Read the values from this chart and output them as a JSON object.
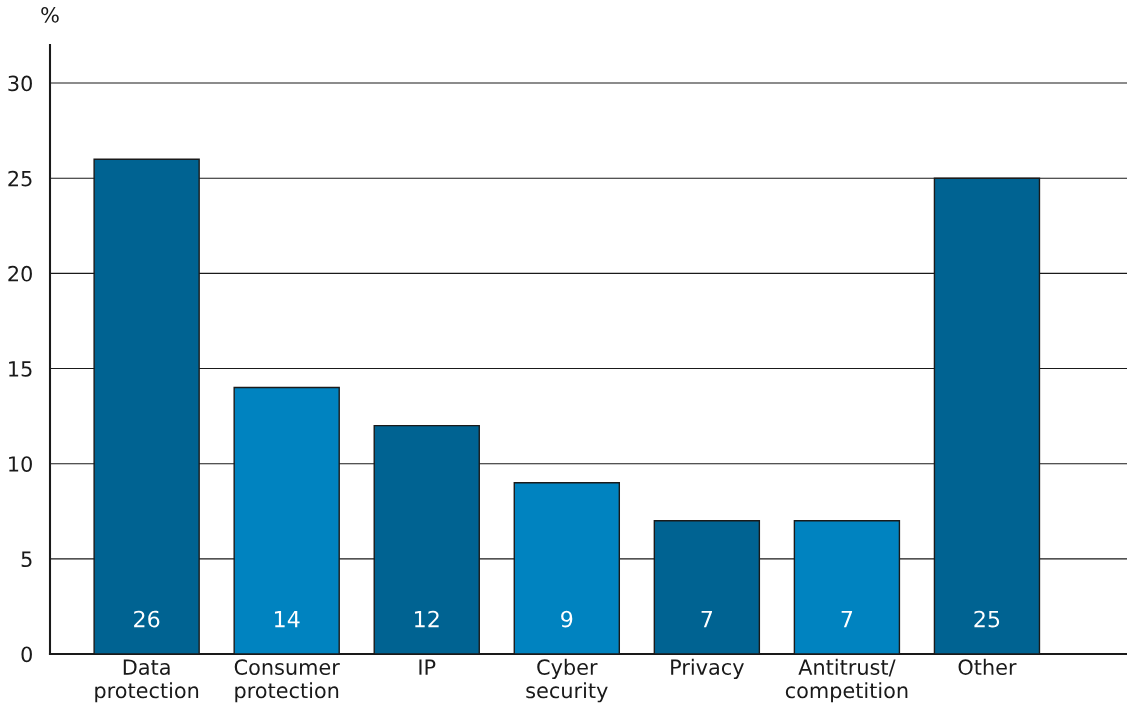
{
  "chart_data": {
    "type": "bar",
    "ylabel": "%",
    "categories": [
      "Data\nprotection",
      "Consumer\nprotection",
      "IP",
      "Cyber\nsecurity",
      "Privacy",
      "Antitrust/\ncompetition",
      "Other"
    ],
    "values": [
      26,
      14,
      12,
      9,
      7,
      7,
      25
    ],
    "colors": [
      "#006392",
      "#0083c0",
      "#006392",
      "#0083c0",
      "#006392",
      "#0083c0",
      "#006392"
    ],
    "ylim": [
      0,
      32
    ],
    "yticks": [
      0,
      5,
      10,
      15,
      20,
      25,
      30
    ],
    "grid": "y",
    "data_labels": true
  }
}
